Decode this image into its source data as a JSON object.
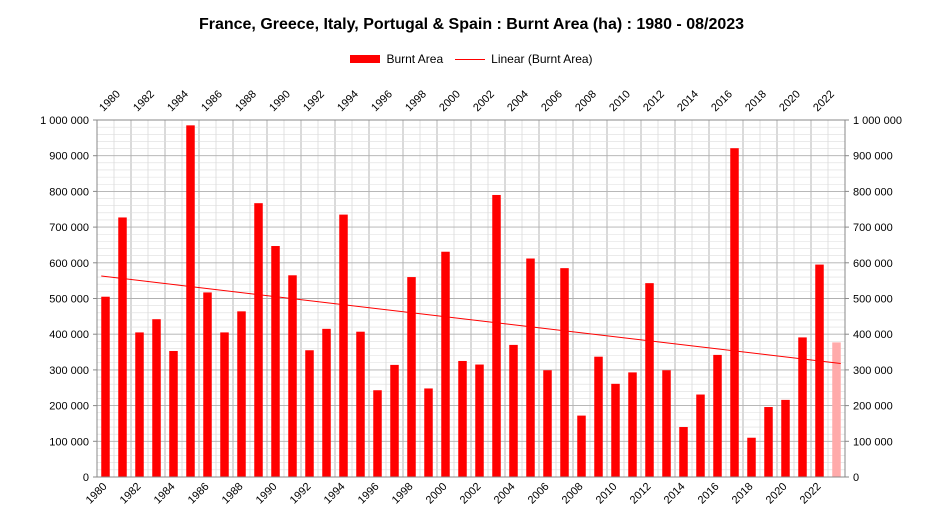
{
  "chart_data": {
    "type": "bar",
    "title": "France, Greece, Italy, Portugal & Spain : Burnt Area (ha) : 1980 - 08/2023",
    "categories": [
      1980,
      1981,
      1982,
      1983,
      1984,
      1985,
      1986,
      1987,
      1988,
      1989,
      1990,
      1991,
      1992,
      1993,
      1994,
      1995,
      1996,
      1997,
      1998,
      1999,
      2000,
      2001,
      2002,
      2003,
      2004,
      2005,
      2006,
      2007,
      2008,
      2009,
      2010,
      2011,
      2012,
      2013,
      2014,
      2015,
      2016,
      2017,
      2018,
      2019,
      2020,
      2021,
      2022,
      2023
    ],
    "x_tick_labels": [
      "1980",
      "1982",
      "1984",
      "1986",
      "1988",
      "1990",
      "1992",
      "1994",
      "1996",
      "1998",
      "2000",
      "2002",
      "2004",
      "2006",
      "2008",
      "2010",
      "2012",
      "2014",
      "2016",
      "2018",
      "2020",
      "2022"
    ],
    "series": [
      {
        "name": "Burnt Area",
        "values": [
          505000,
          727000,
          405000,
          442000,
          353000,
          985000,
          517000,
          405000,
          464000,
          767000,
          647000,
          565000,
          355000,
          415000,
          735000,
          407000,
          243000,
          314000,
          560000,
          248000,
          631000,
          325000,
          315000,
          790000,
          370000,
          612000,
          299000,
          585000,
          172000,
          337000,
          261000,
          293000,
          543000,
          299000,
          140000,
          231000,
          342000,
          921000,
          110000,
          196000,
          216000,
          391000,
          595000,
          377000
        ],
        "color": "#ff0000",
        "partial_color": "#ffaaaa"
      },
      {
        "name": "Linear (Burnt Area)",
        "kind": "trendline",
        "start": [
          1980,
          563000
        ],
        "end": [
          2023,
          318000
        ],
        "color": "#ff0000"
      }
    ],
    "ylim": [
      0,
      1000000
    ],
    "y_step": 100000,
    "y_tick_labels": [
      "0",
      "100 000",
      "200 000",
      "300 000",
      "400 000",
      "500 000",
      "600 000",
      "700 000",
      "800 000",
      "900 000",
      "1 000 000"
    ],
    "grid": true,
    "legend_position": "top-center"
  }
}
